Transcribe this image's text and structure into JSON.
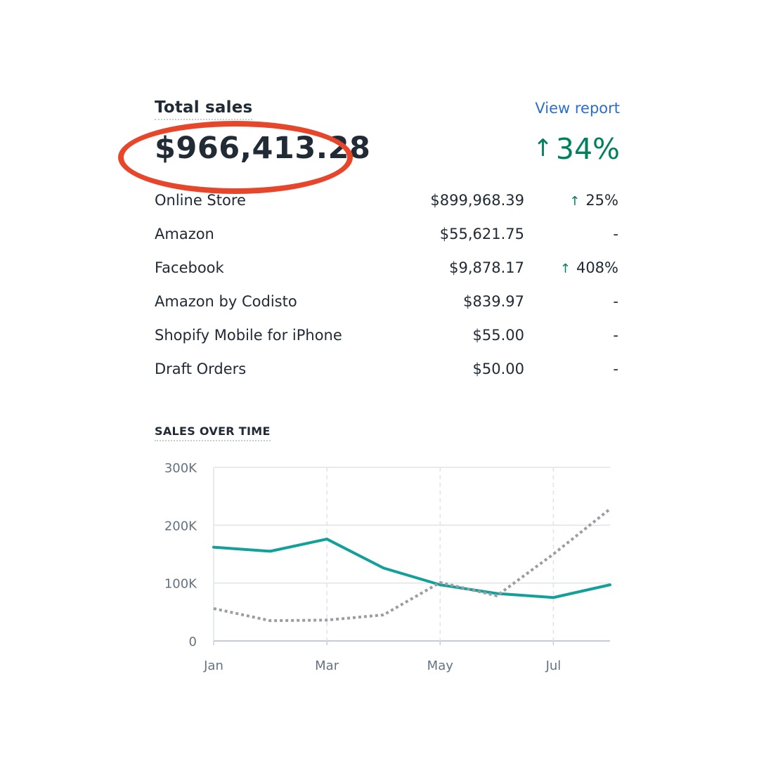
{
  "header": {
    "title": "Total sales",
    "view_report_label": "View report"
  },
  "total": {
    "value": "$966,413.28",
    "change": "34%",
    "highlight_color": "#e8462a"
  },
  "colors": {
    "positive": "#00805f",
    "link": "#2c6ecb",
    "primary_series": "#14a09a",
    "comparison_series": "#9a9ea3"
  },
  "channels": [
    {
      "label": "Online Store",
      "amount": "$899,968.39",
      "change": "25%",
      "trend": "up"
    },
    {
      "label": "Amazon",
      "amount": "$55,621.75",
      "change": "-",
      "trend": "none"
    },
    {
      "label": "Facebook",
      "amount": "$9,878.17",
      "change": "408%",
      "trend": "up"
    },
    {
      "label": "Amazon by Codisto",
      "amount": "$839.97",
      "change": "-",
      "trend": "none"
    },
    {
      "label": "Shopify Mobile for iPhone",
      "amount": "$55.00",
      "change": "-",
      "trend": "none"
    },
    {
      "label": "Draft Orders",
      "amount": "$50.00",
      "change": "-",
      "trend": "none"
    }
  ],
  "chart_section_title": "SALES OVER TIME",
  "chart_data": {
    "type": "line",
    "title": "SALES OVER TIME",
    "x": [
      1,
      2,
      3,
      4,
      5,
      6,
      7,
      8
    ],
    "x_tick_labels": [
      "Jan",
      "Mar",
      "May",
      "Jul"
    ],
    "x_tick_positions": [
      1,
      3,
      5,
      7
    ],
    "y_tick_labels": [
      "0",
      "100K",
      "200K",
      "300K"
    ],
    "y_ticks": [
      0,
      100000,
      200000,
      300000
    ],
    "ylim": [
      0,
      300000
    ],
    "xlim": [
      1,
      8
    ],
    "grid": true,
    "series": [
      {
        "values": [
          162000,
          155000,
          176000,
          126000,
          97000,
          82000,
          75000,
          97000
        ],
        "style": "solid",
        "color": "#14a09a"
      },
      {
        "values": [
          56000,
          35000,
          36000,
          45000,
          101000,
          78000,
          150000,
          228000
        ],
        "style": "dotted",
        "color": "#9a9ea3"
      }
    ]
  }
}
